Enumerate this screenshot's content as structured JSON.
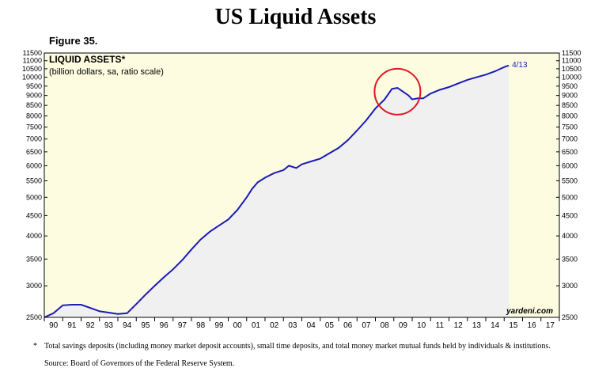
{
  "page": {
    "title": "US Liquid Assets",
    "figure_label": "Figure 35.",
    "footnote_marker": "*",
    "footnote": "Total savings deposits (including money market deposit accounts), small time deposits, and total money market mutual funds held by individuals & institutions.",
    "source": "Source: Board of Governors of the Federal Reserve System."
  },
  "colors": {
    "plot_bg": "#fdfce0",
    "fill": "#f0f0f0",
    "line": "#1a1ab8",
    "circle": "#e0161e"
  },
  "chart_data": {
    "type": "area",
    "title": "LIQUID ASSETS*",
    "subtitle": "(billion dollars, sa, ratio scale)",
    "y_scale": "log",
    "ylim": [
      2500,
      11500
    ],
    "xlim": [
      1990,
      2018
    ],
    "y_ticks": [
      2500,
      3000,
      3500,
      4000,
      4500,
      5000,
      5500,
      6000,
      6500,
      7000,
      7500,
      8000,
      8500,
      9000,
      9500,
      10000,
      10500,
      11000,
      11500
    ],
    "x_tick_labels": [
      "90",
      "91",
      "92",
      "93",
      "94",
      "95",
      "96",
      "97",
      "98",
      "99",
      "00",
      "01",
      "02",
      "03",
      "04",
      "05",
      "06",
      "07",
      "08",
      "09",
      "10",
      "11",
      "12",
      "13",
      "14",
      "15",
      "16",
      "17"
    ],
    "last_label": "4/13",
    "watermark": "yardeni.com",
    "series": [
      {
        "name": "Liquid Assets",
        "x": [
          1990.0,
          1990.5,
          1991.0,
          1991.5,
          1992.0,
          1992.5,
          1993.0,
          1993.5,
          1994.0,
          1994.5,
          1995.0,
          1995.5,
          1996.0,
          1996.5,
          1997.0,
          1997.5,
          1998.0,
          1998.5,
          1999.0,
          1999.5,
          2000.0,
          2000.5,
          2001.0,
          2001.3,
          2001.6,
          2002.0,
          2002.5,
          2003.0,
          2003.3,
          2003.7,
          2004.0,
          2004.5,
          2005.0,
          2005.5,
          2006.0,
          2006.5,
          2007.0,
          2007.5,
          2008.0,
          2008.5,
          2008.9,
          2009.2,
          2009.5,
          2009.8,
          2010.0,
          2010.3,
          2010.6,
          2011.0,
          2011.5,
          2012.0,
          2012.5,
          2013.0,
          2013.5,
          2014.0,
          2014.5,
          2014.8,
          2015.1,
          2015.25
        ],
        "values": [
          2500,
          2560,
          2680,
          2690,
          2690,
          2640,
          2590,
          2570,
          2550,
          2560,
          2700,
          2850,
          3000,
          3150,
          3300,
          3480,
          3700,
          3920,
          4100,
          4250,
          4400,
          4650,
          5000,
          5250,
          5450,
          5600,
          5750,
          5850,
          6000,
          5920,
          6050,
          6150,
          6250,
          6450,
          6650,
          6950,
          7350,
          7800,
          8350,
          8800,
          9350,
          9400,
          9200,
          9000,
          8800,
          8850,
          8850,
          9100,
          9300,
          9450,
          9650,
          9850,
          10000,
          10150,
          10350,
          10500,
          10650,
          10700
        ]
      }
    ],
    "annotation": {
      "type": "circle",
      "x": 2009.2,
      "y": 9200
    }
  }
}
